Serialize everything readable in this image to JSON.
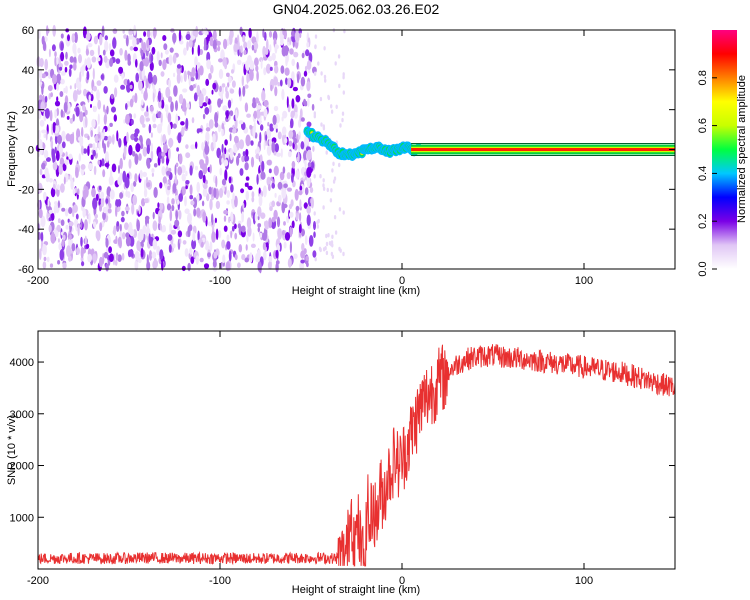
{
  "figure": {
    "title": "GN04.2025.062.03.26.E02"
  },
  "chart_data": [
    {
      "type": "heatmap",
      "xlabel": "Height of straight line (km)",
      "ylabel": "Frequency (Hz)",
      "xlim": [
        -200,
        150
      ],
      "ylim": [
        -60,
        60
      ],
      "xticks": [
        -200,
        -100,
        0,
        100
      ],
      "yticks": [
        60,
        40,
        20,
        0,
        -20,
        -40,
        -60
      ],
      "noise_region_x": [
        -200,
        -48
      ],
      "signal_track": {
        "x": [
          -52,
          -47,
          -42,
          -38,
          -34,
          -30,
          -26,
          -22,
          -18,
          -14,
          -10,
          -6,
          -2,
          2,
          6,
          10,
          150
        ],
        "y": [
          9,
          6,
          4,
          1,
          -2,
          -3,
          -2,
          -1,
          0,
          1,
          0,
          -1,
          0,
          1,
          0,
          0,
          0
        ]
      },
      "steady_line": {
        "x": [
          5,
          150
        ],
        "y": 0,
        "halfwidth_hz": 2.5
      },
      "colorbar": {
        "label": "Normalized spectral amplitude",
        "range": [
          0,
          1
        ],
        "ticks": [
          "0.0",
          "0.2",
          "0.4",
          "0.6",
          "0.8"
        ],
        "colors": [
          "#ffffff",
          "#e0c6f5",
          "#7a00e6",
          "#0000ff",
          "#00c8ff",
          "#00ff40",
          "#c8ff00",
          "#ffff00",
          "#ff8000",
          "#ff0000",
          "#ff0080"
        ]
      },
      "grid": false
    },
    {
      "type": "line",
      "xlabel": "Height of straight line (km)",
      "ylabel": "SNR (10 * v/v)",
      "xlim": [
        -200,
        150
      ],
      "ylim": [
        0,
        4600
      ],
      "xticks": [
        -200,
        -100,
        0,
        100
      ],
      "yticks": [
        1000,
        2000,
        3000,
        4000
      ],
      "color": "#e83030",
      "series": [
        {
          "x": [
            -200,
            -180,
            -160,
            -140,
            -120,
            -100,
            -80,
            -60,
            -40,
            -35,
            -32,
            -30,
            -28,
            -26,
            -24,
            -22,
            -20,
            -19,
            -18,
            -16,
            -14,
            -12,
            -10,
            -8,
            -6,
            -4,
            -2,
            0,
            2,
            4,
            6,
            8,
            10,
            12,
            15,
            20,
            25,
            30,
            35,
            40,
            45,
            50,
            55,
            60,
            70,
            80,
            90,
            100,
            110,
            120,
            130,
            140,
            150
          ],
          "y": [
            200,
            210,
            200,
            215,
            205,
            210,
            200,
            215,
            210,
            200,
            220,
            400,
            1200,
            500,
            800,
            250,
            300,
            1500,
            700,
            1300,
            900,
            1500,
            1400,
            1800,
            1900,
            2200,
            2000,
            2100,
            2300,
            2500,
            2700,
            2900,
            3100,
            3250,
            3400,
            3600,
            3800,
            3950,
            4050,
            4100,
            4120,
            4130,
            4100,
            4080,
            4050,
            4000,
            3950,
            3900,
            3850,
            3800,
            3700,
            3600,
            3500
          ]
        }
      ],
      "grid": false
    }
  ]
}
